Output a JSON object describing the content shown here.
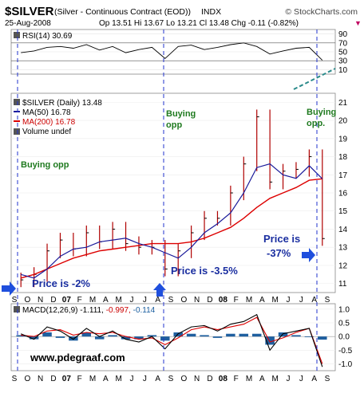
{
  "header": {
    "symbol": "$SILVER",
    "description": "(Silver - Continuous Contract (EOD))",
    "exchange": "INDX",
    "copyright": "© StockCharts.com",
    "date": "25-Aug-2008",
    "quote": "Op 13.51  Hi 13.67  Lo 13.21  Cl 13.48  Chg -0.11 (-0.82%)",
    "quote_arrow": "▼"
  },
  "rsi_panel": {
    "label": "RSI(14) 30.69",
    "ticks": [
      "90",
      "70",
      "50",
      "30",
      "10"
    ]
  },
  "price_panel": {
    "legend": [
      "$SILVER (Daily) 13.48",
      "MA(50) 16.78",
      "MA(200) 16.78",
      "Volume undef"
    ],
    "ticks": [
      "21",
      "20",
      "19",
      "18",
      "17",
      "16",
      "15",
      "14",
      "13",
      "12",
      "11"
    ]
  },
  "macd_panel": {
    "label": "MACD(12,26,9) -1.111, -0.997, -0.114",
    "label_main": "MACD(12,26,9) -1.111,",
    "label_signal": "-0.997,",
    "label_hist": "-0.114",
    "ticks": [
      "1.0",
      "0.5",
      "0.0",
      "-0.5",
      "-1.0"
    ]
  },
  "x_axis": {
    "labels": [
      "S",
      "O",
      "N",
      "D",
      "07",
      "F",
      "M",
      "A",
      "M",
      "J",
      "J",
      "A",
      "S",
      "O",
      "N",
      "D",
      "08",
      "F",
      "M",
      "A",
      "M",
      "J",
      "J",
      "A",
      "S"
    ]
  },
  "annotations": {
    "buying_opp_1": "Buying opp",
    "buying_opp_2a": "Buying",
    "buying_opp_2b": "opp",
    "buying_opp_3a": "Buying",
    "buying_opp_3b": "opp.",
    "price_1": "Price is -2%",
    "price_2": "Price is -3.5%",
    "price_3a": "Price is",
    "price_3b": "-37%",
    "website": "www.pdegraaf.com"
  },
  "colors": {
    "price_bars": "#b00000",
    "ma50": "#1a1a9a",
    "ma200": "#dd0000",
    "macd_line": "#000000",
    "signal_line": "#dd0000",
    "histogram": "#1f5f9f",
    "annotation_green": "#1f7a1f",
    "annotation_blue": "#1a2ea0",
    "arrow_blue": "#1f4fdd"
  },
  "chart_data": [
    {
      "type": "line",
      "name": "RSI(14)",
      "ylim": [
        0,
        100
      ],
      "x": [
        "2006-09",
        "2006-10",
        "2006-11",
        "2006-12",
        "2007-01",
        "2007-02",
        "2007-03",
        "2007-04",
        "2007-05",
        "2007-06",
        "2007-07",
        "2007-08",
        "2007-09",
        "2007-10",
        "2007-11",
        "2007-12",
        "2008-01",
        "2008-02",
        "2008-03",
        "2008-04",
        "2008-05",
        "2008-06",
        "2008-07",
        "2008-08"
      ],
      "values": [
        48,
        52,
        60,
        62,
        58,
        66,
        54,
        62,
        48,
        55,
        60,
        35,
        62,
        65,
        55,
        60,
        66,
        70,
        62,
        45,
        52,
        58,
        60,
        31
      ]
    },
    {
      "type": "line",
      "title": "$SILVER (Daily) 13.48",
      "ylim": [
        10.5,
        21.5
      ],
      "x": [
        "2006-09",
        "2006-10",
        "2006-11",
        "2006-12",
        "2007-01",
        "2007-02",
        "2007-03",
        "2007-04",
        "2007-05",
        "2007-06",
        "2007-07",
        "2007-08",
        "2007-09",
        "2007-10",
        "2007-11",
        "2007-12",
        "2008-01",
        "2008-02",
        "2008-03",
        "2008-04",
        "2008-05",
        "2008-06",
        "2008-07",
        "2008-08"
      ],
      "series": [
        {
          "name": "$SILVER (Daily) 13.48",
          "values": [
            11.2,
            11.5,
            12.8,
            13.4,
            12.9,
            13.8,
            13.3,
            14.0,
            13.2,
            13.0,
            13.0,
            11.8,
            12.8,
            13.8,
            14.6,
            14.6,
            16.0,
            17.6,
            20.2,
            16.6,
            17.2,
            17.3,
            18.0,
            13.48
          ]
        },
        {
          "name": "MA(50) 16.78",
          "values": [
            11.5,
            11.3,
            11.8,
            12.5,
            12.9,
            13.0,
            13.3,
            13.4,
            13.5,
            13.2,
            13.0,
            12.7,
            12.4,
            13.0,
            13.8,
            14.3,
            14.9,
            16.0,
            17.4,
            17.6,
            17.0,
            16.8,
            17.5,
            16.78
          ]
        },
        {
          "name": "MA(200) 16.78",
          "values": [
            11.3,
            11.5,
            11.8,
            12.1,
            12.4,
            12.6,
            12.8,
            12.9,
            13.0,
            13.1,
            13.2,
            13.2,
            13.2,
            13.3,
            13.5,
            13.8,
            14.1,
            14.6,
            15.2,
            15.7,
            16.0,
            16.3,
            16.7,
            16.78
          ]
        }
      ]
    },
    {
      "type": "line",
      "title": "MACD(12,26,9) -1.111, -0.997, -0.114",
      "ylim": [
        -1.25,
        1.2
      ],
      "x": [
        "2006-09",
        "2006-10",
        "2006-11",
        "2006-12",
        "2007-01",
        "2007-02",
        "2007-03",
        "2007-04",
        "2007-05",
        "2007-06",
        "2007-07",
        "2007-08",
        "2007-09",
        "2007-10",
        "2007-11",
        "2007-12",
        "2008-01",
        "2008-02",
        "2008-03",
        "2008-04",
        "2008-05",
        "2008-06",
        "2008-07",
        "2008-08"
      ],
      "series": [
        {
          "name": "MACD",
          "values": [
            0.1,
            -0.1,
            0.35,
            0.2,
            -0.1,
            0.3,
            0.0,
            0.2,
            -0.1,
            -0.2,
            0.0,
            -0.45,
            0.1,
            0.35,
            0.4,
            0.2,
            0.45,
            0.55,
            0.8,
            -0.5,
            0.1,
            0.2,
            0.3,
            -1.111
          ]
        },
        {
          "name": "Signal",
          "values": [
            0.05,
            0.0,
            0.2,
            0.25,
            0.05,
            0.15,
            0.1,
            0.15,
            0.0,
            -0.1,
            -0.05,
            -0.3,
            -0.05,
            0.25,
            0.35,
            0.25,
            0.35,
            0.45,
            0.7,
            -0.2,
            -0.05,
            0.15,
            0.3,
            -0.997
          ]
        },
        {
          "name": "Histogram",
          "values": [
            0.05,
            -0.1,
            0.15,
            -0.05,
            -0.15,
            0.15,
            -0.1,
            0.05,
            -0.1,
            -0.1,
            0.05,
            -0.15,
            0.15,
            0.1,
            0.05,
            -0.05,
            0.1,
            0.1,
            0.1,
            -0.3,
            0.15,
            0.05,
            0.0,
            -0.114
          ]
        }
      ]
    }
  ]
}
